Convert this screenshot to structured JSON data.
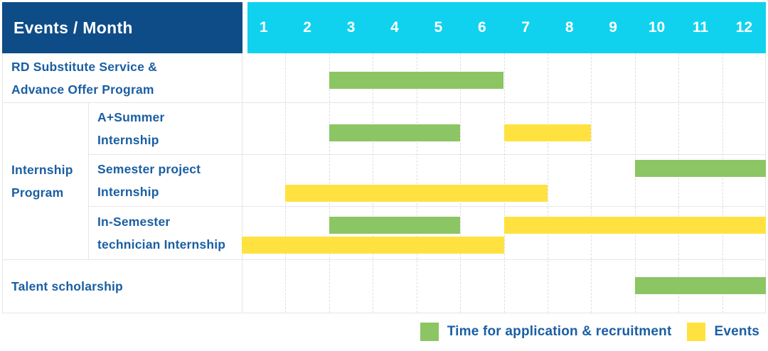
{
  "header": {
    "corner_label": "Events / Month",
    "months": [
      "1",
      "2",
      "3",
      "4",
      "5",
      "6",
      "7",
      "8",
      "9",
      "10",
      "11",
      "12"
    ]
  },
  "labels": {
    "rd": [
      "RD Substitute Service &",
      "Advance Offer Program"
    ],
    "group": [
      "Internship",
      "Program"
    ],
    "a_summer": [
      "A+Summer",
      "Internship"
    ],
    "semester_project": [
      "Semester project",
      "Internship"
    ],
    "in_semester": [
      "In-Semester",
      "technician Internship"
    ],
    "talent": [
      "Talent scholarship"
    ]
  },
  "legend": {
    "items": [
      {
        "color_name": "green",
        "color": "#8cc563",
        "label": "Time for application & recruitment"
      },
      {
        "color_name": "yellow",
        "color": "#ffe23f",
        "label": "Events"
      }
    ]
  },
  "colors": {
    "corner_header_bg": "#0e4c87",
    "month_header_bg": "#10d2ee",
    "application_bar": "#8cc563",
    "events_bar": "#ffe23f",
    "label_text": "#1a5fa3",
    "header_text": "#ffffff"
  },
  "chart_data": {
    "type": "gantt",
    "unit": "month",
    "x_domain": [
      1,
      12
    ],
    "x_ticks": [
      "1",
      "2",
      "3",
      "4",
      "5",
      "6",
      "7",
      "8",
      "9",
      "10",
      "11",
      "12"
    ],
    "title": "Events / Month",
    "legend_entries": [
      {
        "color": "green",
        "meaning": "Time for application & recruitment"
      },
      {
        "color": "yellow",
        "meaning": "Events"
      }
    ],
    "rows": [
      {
        "group": null,
        "label": "RD Substitute Service & Advance Offer Program",
        "bars": [
          {
            "kind": "application_recruitment",
            "color": "green",
            "start_month": 3,
            "end_month": 6,
            "lane": "single"
          }
        ]
      },
      {
        "group": "Internship Program",
        "label": "A+Summer Internship",
        "bars": [
          {
            "kind": "application_recruitment",
            "color": "green",
            "start_month": 3,
            "end_month": 5,
            "lane": "single"
          },
          {
            "kind": "events",
            "color": "yellow",
            "start_month": 7,
            "end_month": 8,
            "lane": "single"
          }
        ]
      },
      {
        "group": "Internship Program",
        "label": "Semester project Internship",
        "bars": [
          {
            "kind": "application_recruitment",
            "color": "green",
            "start_month": 10,
            "end_month": 12,
            "lane": "top"
          },
          {
            "kind": "events",
            "color": "yellow",
            "start_month": 2,
            "end_month": 7,
            "lane": "bottom"
          }
        ]
      },
      {
        "group": "Internship Program",
        "label": "In-Semester technician Internship",
        "bars": [
          {
            "kind": "application_recruitment",
            "color": "green",
            "start_month": 3,
            "end_month": 5,
            "lane": "top"
          },
          {
            "kind": "events",
            "color": "yellow",
            "start_month": 7,
            "end_month": 12,
            "lane": "top"
          },
          {
            "kind": "events",
            "color": "yellow",
            "start_month": 1,
            "end_month": 6,
            "lane": "bottom"
          }
        ]
      },
      {
        "group": null,
        "label": "Talent scholarship",
        "bars": [
          {
            "kind": "application_recruitment",
            "color": "green",
            "start_month": 10,
            "end_month": 12,
            "lane": "single"
          }
        ]
      }
    ]
  }
}
